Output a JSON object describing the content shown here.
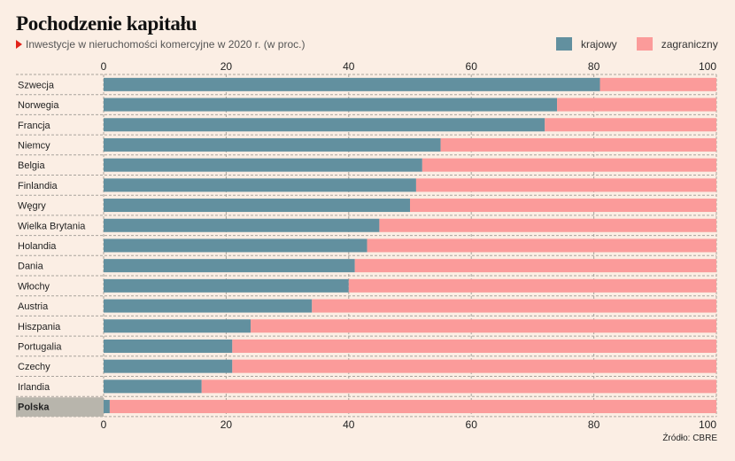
{
  "header": {
    "title": "Pochodzenie kapitału",
    "subtitle": "Inwestycje w nieruchomości komercyjne w 2020 r. (w proc.)"
  },
  "legend": {
    "domestic_label": "krajowy",
    "foreign_label": "zagraniczny"
  },
  "source": "Źródło: CBRE",
  "colors": {
    "domestic": "#62909f",
    "foreign": "#fb9b9a",
    "highlight_label_bg": "#b8b5ac"
  },
  "chart_data": {
    "type": "bar",
    "orientation": "horizontal",
    "stacked": true,
    "title": "Pochodzenie kapitału",
    "subtitle": "Inwestycje w nieruchomości komercyjne w 2020 r. (w proc.)",
    "xlim": [
      0,
      100
    ],
    "xticks": [
      0,
      20,
      40,
      60,
      80,
      100
    ],
    "legend_position": "top-right",
    "highlight": "Polska",
    "categories": [
      "Szwecja",
      "Norwegia",
      "Francja",
      "Niemcy",
      "Belgia",
      "Finlandia",
      "Węgry",
      "Wielka Brytania",
      "Holandia",
      "Dania",
      "Włochy",
      "Austria",
      "Hiszpania",
      "Portugalia",
      "Czechy",
      "Irlandia",
      "Polska"
    ],
    "series": [
      {
        "name": "krajowy",
        "values": [
          81,
          74,
          72,
          55,
          52,
          51,
          50,
          45,
          43,
          41,
          40,
          34,
          24,
          21,
          21,
          16,
          1
        ]
      },
      {
        "name": "zagraniczny",
        "values": [
          19,
          26,
          28,
          45,
          48,
          49,
          50,
          55,
          57,
          59,
          60,
          66,
          76,
          79,
          79,
          84,
          99
        ]
      }
    ]
  }
}
